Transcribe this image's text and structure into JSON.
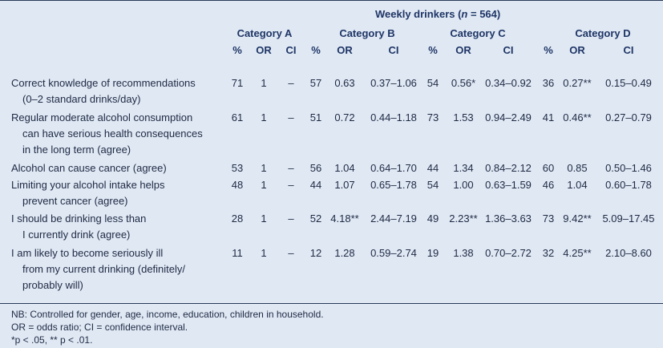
{
  "header": {
    "super_title_pre": "Weekly drinkers (",
    "super_title_n": "n",
    "super_title_post": " = 564)",
    "categories": [
      "Category A",
      "Category B",
      "Category C",
      "Category D"
    ],
    "subcols": {
      "pct": "%",
      "or": "OR",
      "ci": "CI"
    }
  },
  "rows": [
    {
      "label_lines": [
        "Correct knowledge of recommendations",
        "(0–2 standard drinks/day)"
      ],
      "cells": [
        "71",
        "1",
        "–",
        "57",
        "0.63",
        "0.37–1.06",
        "54",
        "0.56*",
        "0.34–0.92",
        "36",
        "0.27**",
        "0.15–0.49"
      ]
    },
    {
      "label_lines": [
        "Regular moderate alcohol consumption",
        "can have serious health consequences",
        "in the long term (agree)"
      ],
      "cells": [
        "61",
        "1",
        "–",
        "51",
        "0.72",
        "0.44–1.18",
        "73",
        "1.53",
        "0.94–2.49",
        "41",
        "0.46**",
        "0.27–0.79"
      ]
    },
    {
      "label_lines": [
        "Alcohol can cause cancer (agree)"
      ],
      "cells": [
        "53",
        "1",
        "–",
        "56",
        "1.04",
        "0.64–1.70",
        "44",
        "1.34",
        "0.84–2.12",
        "60",
        "0.85",
        "0.50–1.46"
      ]
    },
    {
      "label_lines": [
        "Limiting your alcohol intake helps",
        "prevent cancer (agree)"
      ],
      "cells": [
        "48",
        "1",
        "–",
        "44",
        "1.07",
        "0.65–1.78",
        "54",
        "1.00",
        "0.63–1.59",
        "46",
        "1.04",
        "0.60–1.78"
      ]
    },
    {
      "label_lines": [
        "I should be drinking less than",
        "I currently drink (agree)"
      ],
      "cells": [
        "28",
        "1",
        "–",
        "52",
        "4.18**",
        "2.44–7.19",
        "49",
        "2.23**",
        "1.36–3.63",
        "73",
        "9.42**",
        "5.09–17.45"
      ]
    },
    {
      "label_lines": [
        "I am likely to become seriously ill",
        "from my current drinking (definitely/",
        "probably will)"
      ],
      "cells": [
        "11",
        "1",
        "–",
        "12",
        "1.28",
        "0.59–2.74",
        "19",
        "1.38",
        "0.70–2.72",
        "32",
        "4.25**",
        "2.10–8.60"
      ]
    }
  ],
  "footnotes": [
    "NB: Controlled for gender, age, income, education, children in household.",
    "OR = odds ratio; CI = confidence interval.",
    "*p < .05, ** p < .01."
  ]
}
